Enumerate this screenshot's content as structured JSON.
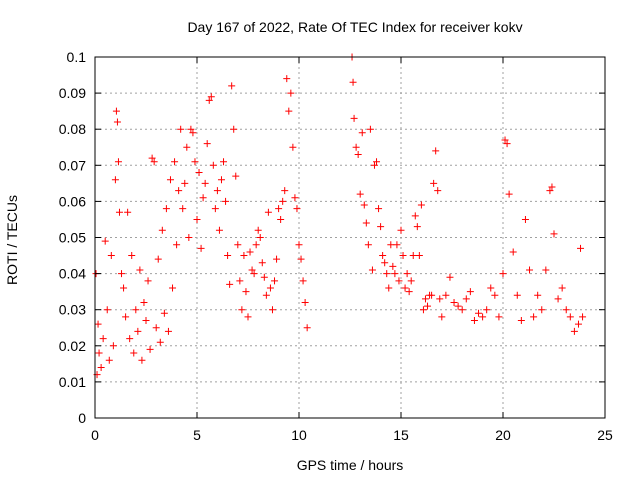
{
  "chart_data": {
    "type": "scatter",
    "title": "Day 167 of 2022, Rate Of TEC Index for receiver kokv",
    "xlabel": "GPS time / hours",
    "ylabel": "ROTI / TECUs",
    "xlim": [
      0,
      25
    ],
    "ylim": [
      0,
      0.1
    ],
    "xticks": [
      "0",
      "5",
      "10",
      "15",
      "20",
      "25"
    ],
    "yticks": [
      "0",
      "0.01",
      "0.02",
      "0.03",
      "0.04",
      "0.05",
      "0.06",
      "0.07",
      "0.08",
      "0.09",
      "0.1"
    ],
    "grid": true,
    "marker": "+",
    "color": "#ff0000",
    "series": [
      {
        "x": [
          0.05,
          0.1,
          0.15,
          0.2,
          0.3,
          0.4,
          0.5,
          0.6,
          0.7,
          0.8,
          0.9,
          1.0,
          1.05,
          1.1,
          1.15,
          1.2,
          1.3,
          1.4,
          1.5,
          1.6,
          1.7,
          1.8,
          1.9,
          2.0,
          2.1,
          2.2,
          2.3,
          2.4,
          2.5,
          2.6,
          2.7,
          2.8,
          2.9,
          3.0,
          3.1,
          3.2,
          3.3,
          3.4,
          3.5,
          3.6,
          3.7,
          3.8,
          3.9,
          4.0,
          4.1,
          4.2,
          4.3,
          4.4,
          4.5,
          4.6,
          4.7,
          4.8,
          4.9,
          5.0,
          5.1,
          5.2,
          5.3,
          5.4,
          5.5,
          5.6,
          5.7,
          5.8,
          5.9,
          6.0,
          6.1,
          6.2,
          6.3,
          6.4,
          6.5,
          6.6,
          6.7,
          6.8,
          6.9,
          7.0,
          7.1,
          7.2,
          7.3,
          7.4,
          7.5,
          7.6,
          7.7,
          7.8,
          7.9,
          8.0,
          8.1,
          8.2,
          8.3,
          8.4,
          8.5,
          8.6,
          8.7,
          8.8,
          8.9,
          9.0,
          9.1,
          9.2,
          9.3,
          9.4,
          9.5,
          9.6,
          9.7,
          9.8,
          9.9,
          10.0,
          10.1,
          10.2,
          10.3,
          10.4
        ],
        "y": [
          0.04,
          0.012,
          0.026,
          0.018,
          0.014,
          0.022,
          0.049,
          0.03,
          0.016,
          0.045,
          0.02,
          0.066,
          0.085,
          0.082,
          0.071,
          0.057,
          0.04,
          0.036,
          0.028,
          0.057,
          0.022,
          0.045,
          0.018,
          0.03,
          0.024,
          0.041,
          0.016,
          0.032,
          0.027,
          0.038,
          0.019,
          0.072,
          0.071,
          0.025,
          0.044,
          0.021,
          0.052,
          0.029,
          0.058,
          0.024,
          0.066,
          0.036,
          0.071,
          0.048,
          0.063,
          0.08,
          0.058,
          0.065,
          0.075,
          0.05,
          0.08,
          0.079,
          0.071,
          0.055,
          0.068,
          0.047,
          0.061,
          0.065,
          0.076,
          0.088,
          0.089,
          0.07,
          0.058,
          0.063,
          0.052,
          0.066,
          0.071,
          0.06,
          0.045,
          0.037,
          0.092,
          0.08,
          0.067,
          0.048,
          0.038,
          0.03,
          0.045,
          0.035,
          0.028,
          0.046,
          0.041,
          0.04,
          0.048,
          0.052,
          0.05,
          0.043,
          0.039,
          0.034,
          0.057,
          0.036,
          0.03,
          0.038,
          0.044,
          0.058,
          0.055,
          0.06,
          0.063,
          0.094,
          0.085,
          0.09,
          0.075,
          0.061,
          0.058,
          0.048,
          0.044,
          0.038,
          0.032,
          0.025
        ]
      },
      {
        "x": [
          12.6,
          12.65,
          12.7,
          12.8,
          12.9,
          13.0,
          13.1,
          13.2,
          13.3,
          13.4,
          13.5,
          13.6,
          13.7,
          13.8,
          13.9,
          14.0,
          14.1,
          14.2,
          14.3,
          14.4,
          14.5,
          14.6,
          14.7,
          14.8,
          14.9,
          15.0,
          15.1,
          15.2,
          15.3,
          15.4,
          15.5,
          15.6,
          15.7,
          15.8,
          15.9,
          16.0,
          16.1,
          16.2,
          16.3,
          16.4,
          16.5,
          16.6,
          16.7,
          16.8,
          16.9,
          17.0,
          17.2,
          17.4,
          17.6,
          17.8,
          18.0,
          18.2,
          18.4,
          18.6,
          18.8,
          19.0,
          19.2,
          19.4,
          19.6,
          19.8,
          20.0,
          20.1,
          20.2,
          20.3,
          20.5,
          20.7,
          20.9,
          21.1,
          21.3,
          21.5,
          21.7,
          21.9,
          22.1,
          22.3,
          22.4,
          22.5,
          22.7,
          22.9,
          23.1,
          23.3,
          23.5,
          23.7,
          23.8,
          23.9
        ],
        "y": [
          0.1,
          0.093,
          0.083,
          0.075,
          0.073,
          0.062,
          0.079,
          0.059,
          0.054,
          0.048,
          0.08,
          0.041,
          0.07,
          0.071,
          0.058,
          0.053,
          0.045,
          0.043,
          0.04,
          0.036,
          0.048,
          0.042,
          0.04,
          0.048,
          0.038,
          0.052,
          0.045,
          0.036,
          0.04,
          0.035,
          0.038,
          0.045,
          0.056,
          0.053,
          0.045,
          0.059,
          0.03,
          0.033,
          0.031,
          0.034,
          0.034,
          0.065,
          0.074,
          0.063,
          0.033,
          0.028,
          0.034,
          0.039,
          0.032,
          0.031,
          0.03,
          0.033,
          0.035,
          0.027,
          0.029,
          0.028,
          0.03,
          0.036,
          0.034,
          0.028,
          0.04,
          0.077,
          0.076,
          0.062,
          0.046,
          0.034,
          0.027,
          0.055,
          0.041,
          0.028,
          0.034,
          0.03,
          0.041,
          0.063,
          0.064,
          0.051,
          0.033,
          0.036,
          0.03,
          0.028,
          0.024,
          0.026,
          0.047,
          0.028
        ]
      }
    ]
  }
}
